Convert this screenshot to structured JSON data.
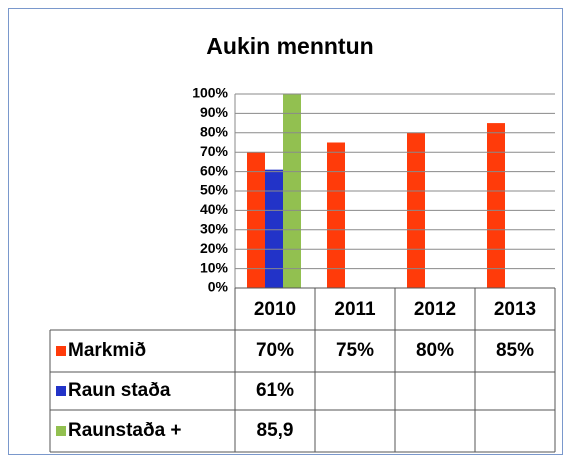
{
  "chart_data": {
    "type": "bar",
    "title": "Aukin menntun",
    "categories": [
      "2010",
      "2011",
      "2012",
      "2013"
    ],
    "series": [
      {
        "name": "Markmið",
        "color": "#ff3b0a",
        "values": [
          0.7,
          0.75,
          0.8,
          0.85
        ],
        "value_labels": [
          "70%",
          "75%",
          "80%",
          "85%"
        ]
      },
      {
        "name": "Raun staða",
        "color": "#2233c8",
        "values": [
          0.61,
          null,
          null,
          null
        ],
        "value_labels": [
          "61%",
          null,
          null,
          null
        ]
      },
      {
        "name": "Raunstaða +",
        "color": "#92c050",
        "values": [
          85.9,
          null,
          null,
          null
        ],
        "value_labels": [
          "85,9",
          null,
          null,
          null
        ]
      }
    ],
    "ylim": [
      0,
      1
    ],
    "yticks": [
      {
        "value": 0,
        "label": "0%"
      },
      {
        "value": 0.1,
        "label": "10%"
      },
      {
        "value": 0.2,
        "label": "20%"
      },
      {
        "value": 0.3,
        "label": "30%"
      },
      {
        "value": 0.4,
        "label": "40%"
      },
      {
        "value": 0.5,
        "label": "50%"
      },
      {
        "value": 0.6,
        "label": "60%"
      },
      {
        "value": 0.7,
        "label": "70%"
      },
      {
        "value": 0.8,
        "label": "80%"
      },
      {
        "value": 0.9,
        "label": "90%"
      },
      {
        "value": 1,
        "label": "100%"
      }
    ],
    "grid": true,
    "data_table": true
  }
}
